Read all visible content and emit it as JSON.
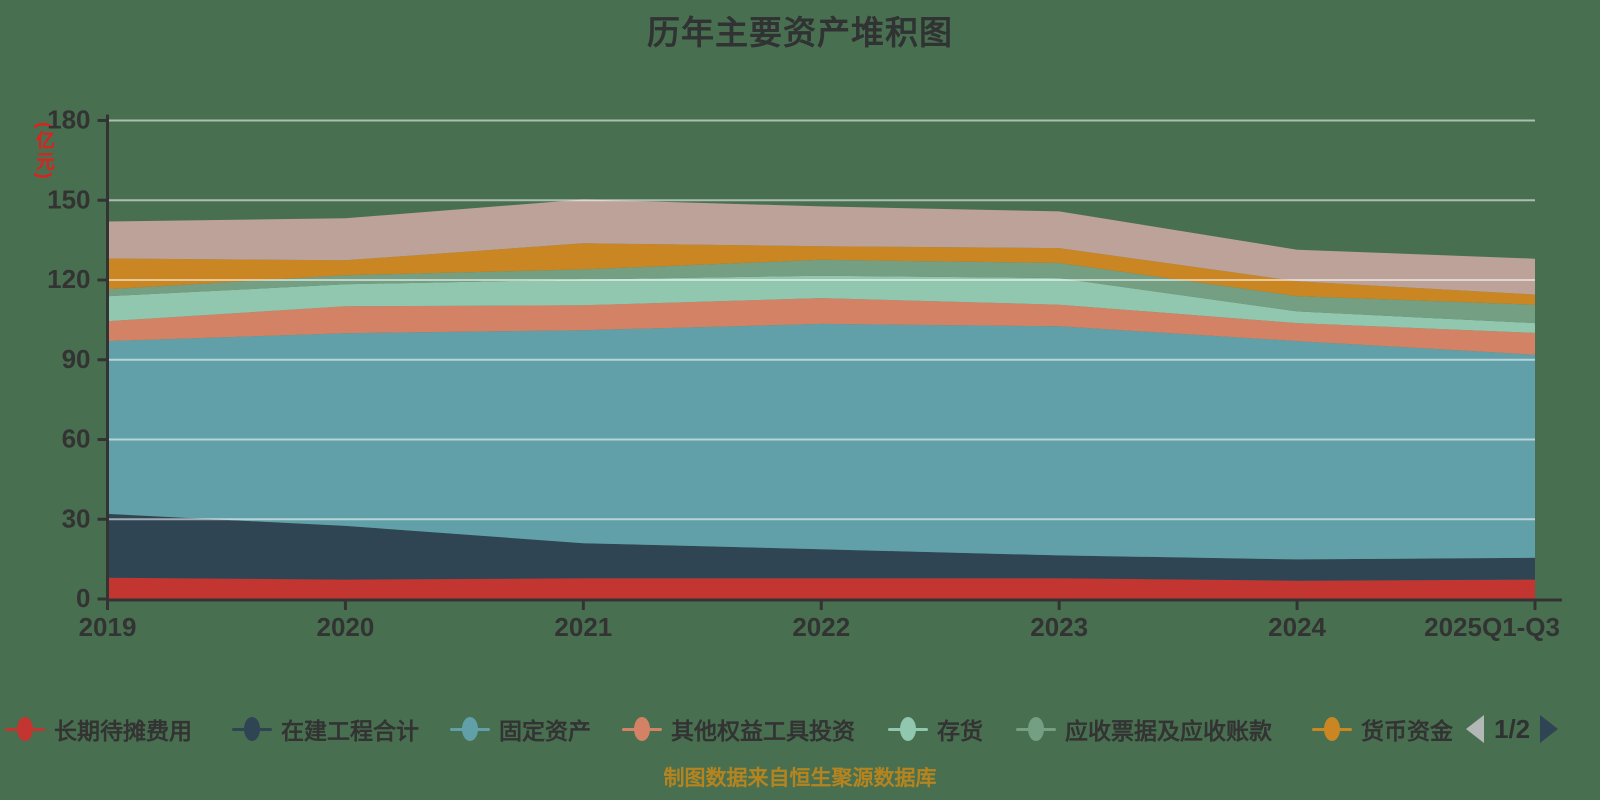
{
  "title": "历年主要资产堆积图",
  "source_note": "制图数据来自恒生聚源数据库",
  "y_axis": {
    "unit_label": "(亿元)",
    "ticks": [
      0,
      30,
      60,
      90,
      120,
      150,
      180
    ],
    "max": 180
  },
  "legend": {
    "page_indicator": "1/2",
    "prev_arrow_color": "#b3b8b6",
    "next_arrow_color": "#2f4554"
  },
  "colors": {
    "background": "#487050",
    "axis": "#333333",
    "gridline": "rgba(255,255,255,0.55)",
    "tick_label": "#333333",
    "title_text": "#303233",
    "unit_label_text": "#e01f1f",
    "source_text": "#b5841f"
  },
  "chart_data": {
    "type": "area",
    "stacked": true,
    "grid": true,
    "legend_position": "bottom",
    "title": "历年主要资产堆积图",
    "xlabel": "",
    "ylabel": "(亿元)",
    "ylim": [
      0,
      180
    ],
    "x": [
      "2019",
      "2020",
      "2021",
      "2022",
      "2023",
      "2024",
      "2025Q1-Q3"
    ],
    "series": [
      {
        "name": "长期待摊费用",
        "color": "#c23531",
        "legend_visible": true,
        "values": [
          8.0,
          7.3,
          7.8,
          7.8,
          7.8,
          6.9,
          7.3
        ]
      },
      {
        "name": "在建工程合计",
        "color": "#2f4554",
        "legend_visible": true,
        "values": [
          24.0,
          20.2,
          13.2,
          10.9,
          8.6,
          8.0,
          8.2
        ]
      },
      {
        "name": "固定资产",
        "color": "#61a0a8",
        "legend_visible": true,
        "values": [
          65.0,
          72.5,
          80.1,
          84.8,
          86.2,
          82.1,
          76.4
        ]
      },
      {
        "name": "其他权益工具投资",
        "color": "#d48265",
        "legend_visible": true,
        "values": [
          7.5,
          10.1,
          9.4,
          9.7,
          8.1,
          6.8,
          8.2
        ]
      },
      {
        "name": "存货",
        "color": "#91c7ae",
        "legend_visible": true,
        "values": [
          9.4,
          8.3,
          9.7,
          8.4,
          10.0,
          4.4,
          3.7
        ]
      },
      {
        "name": "应收票据及应收账款",
        "color": "#749f83",
        "legend_visible": true,
        "values": [
          2.6,
          3.4,
          3.8,
          6.0,
          5.7,
          5.7,
          6.9
        ]
      },
      {
        "name": "货币资金",
        "color": "#ca8622",
        "legend_visible": true,
        "values": [
          11.6,
          5.6,
          9.8,
          5.1,
          5.6,
          5.6,
          3.8
        ]
      },
      {
        "name": "",
        "color": "#bda29a",
        "legend_visible": false,
        "values": [
          13.9,
          15.8,
          16.5,
          15.0,
          13.8,
          11.9,
          13.5
        ]
      }
    ]
  }
}
